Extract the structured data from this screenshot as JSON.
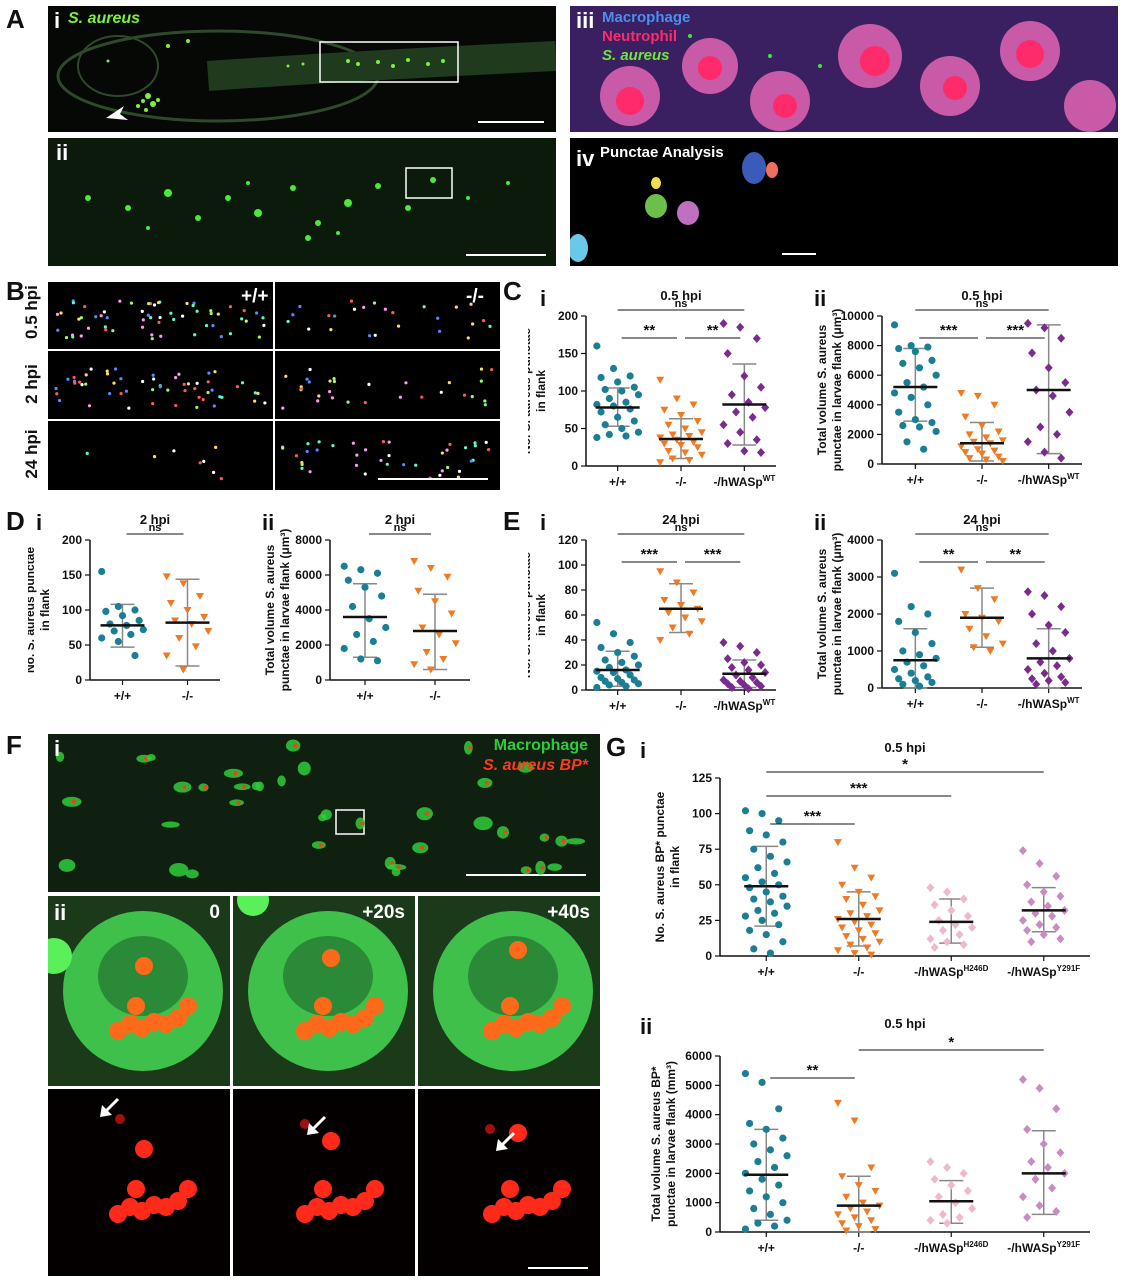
{
  "panelA": {
    "letter": "A",
    "i": {
      "label": "i",
      "overlay": "S. aureus"
    },
    "ii": {
      "label": "ii"
    },
    "iii": {
      "label": "iii",
      "legend": [
        "Macrophage",
        "Neutrophil",
        "S. aureus"
      ]
    },
    "iv": {
      "label": "iv",
      "title": "Punctae Analysis"
    }
  },
  "panelB": {
    "letter": "B",
    "genotypes": [
      "+/+",
      "-/-"
    ],
    "timepoints": [
      "0.5 hpi",
      "2 hpi",
      "24 hpi"
    ]
  },
  "panelC": {
    "letter": "C"
  },
  "panelD": {
    "letter": "D"
  },
  "panelE": {
    "letter": "E"
  },
  "panelF": {
    "letter": "F",
    "i": {
      "label": "i",
      "legend": [
        "Macrophage",
        "S. aureus BP*"
      ]
    },
    "ii": {
      "label": "ii",
      "times": [
        "0",
        "+20s",
        "+40s"
      ]
    }
  },
  "panelG": {
    "letter": "G"
  },
  "colors": {
    "wt": "#1a7f95",
    "ko": "#ee7a24",
    "rescue": "#7b2a8e",
    "h246d": "#f0b8d0",
    "y291f": "#c88cc0",
    "green": "#2ecc3a",
    "red": "#ff3a1a"
  },
  "chart_data": [
    {
      "id": "Ci",
      "roman": "i",
      "type": "scatter",
      "title": "0.5 hpi",
      "ylabel": [
        "No. S. aureus punctae",
        "in flank"
      ],
      "categories": [
        "+/+",
        "-/-",
        "-/hWASp^WT"
      ],
      "ylim": [
        0,
        200
      ],
      "yticks": [
        0,
        50,
        100,
        150,
        200
      ],
      "means": [
        78,
        36,
        82
      ],
      "sd_low": [
        53,
        10,
        28
      ],
      "sd_high": [
        104,
        63,
        136
      ],
      "points": [
        [
          160,
          130,
          120,
          118,
          112,
          105,
          102,
          100,
          95,
          90,
          85,
          82,
          80,
          76,
          72,
          65,
          60,
          55,
          50,
          45,
          42,
          40,
          38
        ],
        [
          115,
          90,
          82,
          75,
          68,
          60,
          55,
          50,
          45,
          42,
          40,
          38,
          35,
          32,
          30,
          28,
          25,
          20,
          18,
          15,
          10,
          8,
          5
        ],
        [
          190,
          185,
          170,
          150,
          120,
          105,
          95,
          85,
          78,
          72,
          65,
          55,
          45,
          35,
          30,
          20,
          18
        ]
      ],
      "sig": [
        {
          "a": 0,
          "b": 2,
          "label": "ns"
        },
        {
          "a": 0,
          "b": 1,
          "label": "**"
        },
        {
          "a": 1,
          "b": 2,
          "label": "**"
        }
      ]
    },
    {
      "id": "Cii",
      "roman": "ii",
      "type": "scatter",
      "title": "0.5 hpi",
      "ylabel": [
        "Total volume S. aureus",
        "punctae in larvae flank (μm³)"
      ],
      "categories": [
        "+/+",
        "-/-",
        "-/hWASp^WT"
      ],
      "ylim": [
        0,
        10000
      ],
      "yticks": [
        0,
        2000,
        4000,
        6000,
        8000,
        10000
      ],
      "means": [
        5200,
        1400,
        5000
      ],
      "sd_low": [
        2900,
        200,
        700
      ],
      "sd_high": [
        7800,
        2800,
        9400
      ],
      "points": [
        [
          9400,
          8000,
          7900,
          7800,
          7600,
          7000,
          6800,
          6500,
          6000,
          5500,
          5200,
          4800,
          4500,
          4000,
          3500,
          3000,
          2800,
          2600,
          2500,
          2200,
          1500,
          1000
        ],
        [
          4800,
          4600,
          4000,
          3200,
          2600,
          2200,
          2000,
          1800,
          1600,
          1500,
          1400,
          1200,
          1000,
          900,
          800,
          700,
          500,
          400,
          300,
          200
        ],
        [
          9500,
          9200,
          8500,
          7500,
          6500,
          5500,
          5000,
          4600,
          3500,
          2500,
          2000,
          1500,
          800,
          400
        ]
      ],
      "sig": [
        {
          "a": 0,
          "b": 2,
          "label": "ns"
        },
        {
          "a": 0,
          "b": 1,
          "label": "***"
        },
        {
          "a": 1,
          "b": 2,
          "label": "***"
        }
      ]
    },
    {
      "id": "Di",
      "roman": "i",
      "type": "scatter",
      "title": "2 hpi",
      "ylabel": [
        "No. S. aureus punctae",
        "in flank"
      ],
      "categories": [
        "+/+",
        "-/-"
      ],
      "ylim": [
        0,
        200
      ],
      "yticks": [
        0,
        50,
        100,
        150,
        200
      ],
      "means": [
        78,
        82
      ],
      "sd_low": [
        47,
        20
      ],
      "sd_high": [
        108,
        144
      ],
      "points": [
        [
          155,
          105,
          100,
          98,
          92,
          85,
          80,
          78,
          72,
          70,
          65,
          60,
          55,
          35
        ],
        [
          148,
          138,
          120,
          110,
          100,
          90,
          85,
          80,
          70,
          60,
          48,
          35,
          15
        ]
      ],
      "sig": [
        {
          "a": 0,
          "b": 1,
          "label": "ns"
        }
      ]
    },
    {
      "id": "Dii",
      "roman": "ii",
      "type": "scatter",
      "title": "2 hpi",
      "ylabel": [
        "Total volume S. aureus",
        "punctae in larvae flank (μm³)"
      ],
      "categories": [
        "+/+",
        "-/-"
      ],
      "ylim": [
        0,
        8000
      ],
      "yticks": [
        0,
        2000,
        4000,
        6000,
        8000
      ],
      "means": [
        3600,
        2800
      ],
      "sd_low": [
        1300,
        600
      ],
      "sd_high": [
        5500,
        4900
      ],
      "points": [
        [
          6500,
          6300,
          6100,
          5700,
          5300,
          4800,
          4200,
          3500,
          3000,
          2600,
          2200,
          1800,
          1200,
          1100
        ],
        [
          6800,
          6400,
          5900,
          5100,
          4500,
          3800,
          3000,
          2600,
          2100,
          1600,
          1200,
          900,
          600
        ]
      ],
      "sig": [
        {
          "a": 0,
          "b": 1,
          "label": "ns"
        }
      ]
    },
    {
      "id": "Ei",
      "roman": "i",
      "type": "scatter",
      "title": "24 hpi",
      "ylabel": [
        "No. S. aureus punctae",
        "in flank"
      ],
      "categories": [
        "+/+",
        "-/-",
        "-/hWASp^WT"
      ],
      "ylim": [
        0,
        120
      ],
      "yticks": [
        0,
        20,
        40,
        60,
        80,
        100,
        120
      ],
      "means": [
        16,
        65,
        13
      ],
      "sd_low": [
        3,
        46,
        2
      ],
      "sd_high": [
        31,
        85,
        24
      ],
      "points": [
        [
          54,
          45,
          38,
          34,
          30,
          27,
          24,
          22,
          20,
          18,
          16,
          15,
          14,
          12,
          10,
          9,
          8,
          7,
          6,
          5,
          4,
          3,
          2
        ],
        [
          95,
          86,
          78,
          72,
          68,
          65,
          62,
          58,
          55,
          50,
          45,
          40
        ],
        [
          38,
          35,
          30,
          25,
          22,
          20,
          18,
          16,
          14,
          12,
          10,
          8,
          7,
          6,
          5,
          4,
          3,
          2,
          1
        ]
      ],
      "sig": [
        {
          "a": 0,
          "b": 2,
          "label": "ns"
        },
        {
          "a": 0,
          "b": 1,
          "label": "***"
        },
        {
          "a": 1,
          "b": 2,
          "label": "***"
        }
      ]
    },
    {
      "id": "Eii",
      "roman": "ii",
      "type": "scatter",
      "title": "24 hpi",
      "ylabel": [
        "Total volume S. aureus",
        "punctae in larvae flank (μm³)"
      ],
      "categories": [
        "+/+",
        "-/-",
        "-/hWASp^WT"
      ],
      "ylim": [
        0,
        4000
      ],
      "yticks": [
        0,
        1000,
        2000,
        3000,
        4000
      ],
      "means": [
        750,
        1900,
        800
      ],
      "sd_low": [
        0,
        1100,
        0
      ],
      "sd_high": [
        1600,
        2700,
        1600
      ],
      "points": [
        [
          3100,
          2200,
          2000,
          1800,
          1500,
          1200,
          1000,
          900,
          800,
          700,
          600,
          500,
          400,
          300,
          250,
          200,
          150,
          100,
          50
        ],
        [
          3200,
          2700,
          2400,
          2000,
          1900,
          1800,
          1600,
          1400,
          1200,
          1100,
          1000
        ],
        [
          2600,
          2500,
          2200,
          2000,
          1700,
          1500,
          1200,
          1000,
          800,
          700,
          600,
          500,
          400,
          300,
          250,
          200,
          150,
          100
        ]
      ],
      "sig": [
        {
          "a": 0,
          "b": 2,
          "label": "ns"
        },
        {
          "a": 0,
          "b": 1,
          "label": "**"
        },
        {
          "a": 1,
          "b": 2,
          "label": "**"
        }
      ]
    },
    {
      "id": "Gi",
      "roman": "i",
      "type": "scatter",
      "title": "0.5 hpi",
      "ylabel": [
        "No. S. aureus BP* punctae",
        "in flank"
      ],
      "categories": [
        "+/+",
        "-/-",
        "-/hWASp^H246D",
        "-/hWASp^Y291F"
      ],
      "ylim": [
        0,
        125
      ],
      "yticks": [
        0,
        25,
        50,
        75,
        100,
        125
      ],
      "means": [
        49,
        26,
        24,
        32
      ],
      "sd_low": [
        21,
        7,
        9,
        17
      ],
      "sd_high": [
        77,
        45,
        40,
        48
      ],
      "points": [
        [
          102,
          100,
          95,
          88,
          85,
          80,
          75,
          70,
          66,
          62,
          58,
          55,
          52,
          50,
          48,
          45,
          42,
          40,
          38,
          35,
          32,
          30,
          28,
          25,
          22,
          18,
          15,
          10,
          5,
          2
        ],
        [
          80,
          62,
          55,
          50,
          45,
          42,
          40,
          36,
          32,
          30,
          28,
          26,
          24,
          22,
          20,
          18,
          16,
          14,
          12,
          10,
          8,
          6,
          4,
          2,
          1
        ],
        [
          48,
          45,
          40,
          36,
          32,
          28,
          25,
          22,
          20,
          18,
          15,
          12,
          10,
          8,
          6
        ],
        [
          74,
          65,
          56,
          50,
          45,
          42,
          38,
          35,
          32,
          30,
          28,
          25,
          22,
          20,
          18,
          15,
          12,
          10
        ]
      ],
      "sig": [
        {
          "a": 0,
          "b": 3,
          "label": "*"
        },
        {
          "a": 0,
          "b": 2,
          "label": "***"
        },
        {
          "a": 0,
          "b": 1,
          "label": "***"
        }
      ]
    },
    {
      "id": "Gii",
      "roman": "ii",
      "type": "scatter",
      "title": "0.5 hpi",
      "ylabel": [
        "Total volume S. aureus BP*",
        "punctae in larvae flank (mm³)"
      ],
      "categories": [
        "+/+",
        "-/-",
        "-/hWASp^H246D",
        "-/hWASp^Y291F"
      ],
      "ylim": [
        0,
        6000
      ],
      "yticks": [
        0,
        1000,
        2000,
        3000,
        4000,
        5000,
        6000
      ],
      "means": [
        1950,
        900,
        1050,
        2000
      ],
      "sd_low": [
        400,
        0,
        300,
        600
      ],
      "sd_high": [
        3500,
        1900,
        1750,
        3450
      ],
      "points": [
        [
          5400,
          5100,
          4200,
          3700,
          3500,
          3200,
          3000,
          2800,
          2600,
          2400,
          2200,
          2000,
          1800,
          1600,
          1400,
          1200,
          1000,
          800,
          600,
          400,
          300,
          200,
          100
        ],
        [
          4400,
          3800,
          2200,
          1900,
          1600,
          1400,
          1200,
          1000,
          900,
          800,
          700,
          600,
          500,
          400,
          300,
          200,
          100,
          50
        ],
        [
          2400,
          2200,
          2000,
          1800,
          1600,
          1400,
          1200,
          1000,
          800,
          600,
          500,
          400,
          300
        ],
        [
          5200,
          4900,
          4200,
          3500,
          3000,
          2700,
          2400,
          2200,
          2000,
          1800,
          1500,
          1200,
          900,
          700,
          500
        ]
      ],
      "sig": [
        {
          "a": 0,
          "b": 1,
          "label": "**"
        },
        {
          "a": 1,
          "b": 3,
          "label": "*"
        }
      ]
    }
  ]
}
